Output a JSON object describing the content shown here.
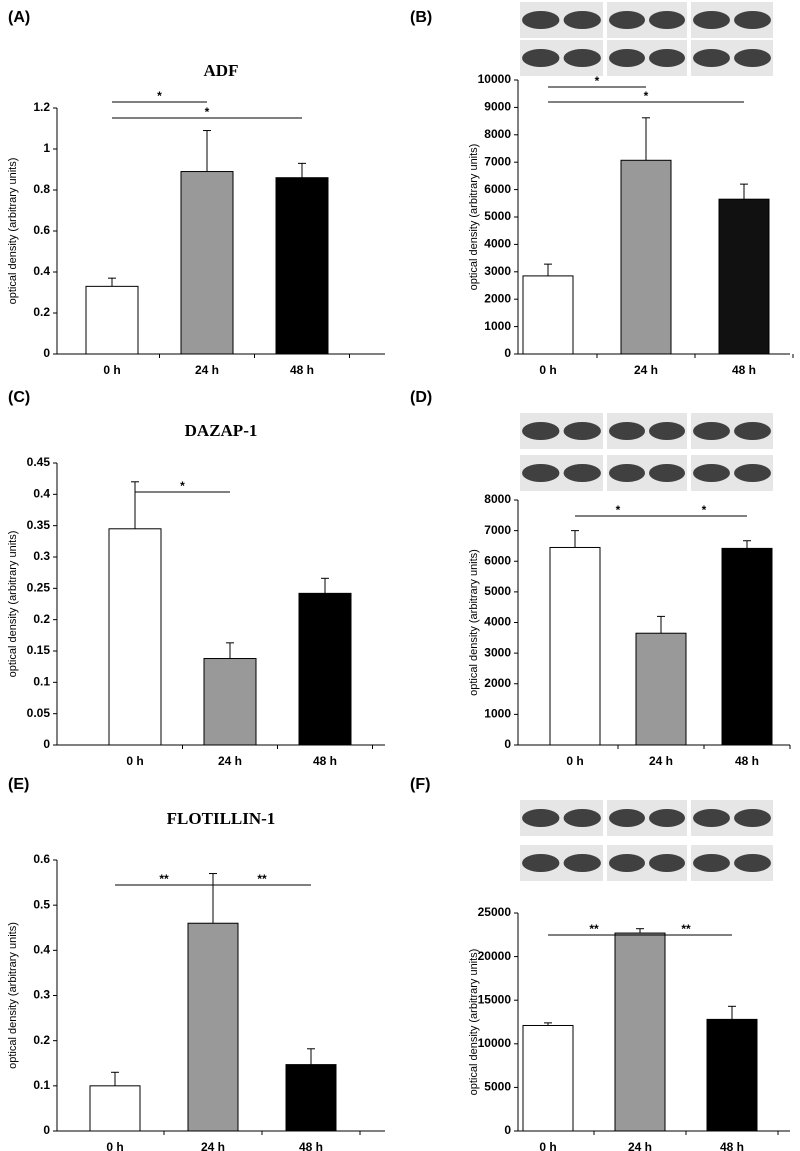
{
  "chart_data": [
    {
      "type": "bar",
      "panel": "(A)",
      "title": "ADF",
      "y_label": "optical density (arbitrary units)",
      "categories": [
        "0 h",
        "24 h",
        "48 h"
      ],
      "values": [
        0.33,
        0.89,
        0.86
      ],
      "errors": [
        0.04,
        0.2,
        0.07
      ],
      "colors": [
        "#ffffff",
        "#999999",
        "#000000"
      ],
      "ylim": [
        0,
        1.2
      ],
      "yticks": [
        0,
        0.2,
        0.4,
        0.6,
        0.8,
        1,
        1.2
      ],
      "annotations": [
        {
          "text": "*",
          "between": [
            0,
            1
          ]
        },
        {
          "text": "*",
          "between": [
            0,
            2
          ]
        }
      ]
    },
    {
      "type": "bar",
      "panel": "(B)",
      "y_label": "optical density (arbitrary units)",
      "categories": [
        "0 h",
        "24 h",
        "48 h"
      ],
      "values": [
        2850,
        7070,
        5650
      ],
      "errors": [
        430,
        1550,
        550
      ],
      "colors": [
        "#ffffff",
        "#999999",
        "#111111"
      ],
      "ylim": [
        0,
        10000
      ],
      "yticks": [
        0,
        1000,
        2000,
        3000,
        4000,
        5000,
        6000,
        7000,
        8000,
        9000,
        10000
      ],
      "annotations": [
        {
          "text": "*",
          "between": [
            0,
            1
          ]
        },
        {
          "text": "*",
          "between": [
            0,
            2
          ]
        }
      ]
    },
    {
      "type": "bar",
      "panel": "(C)",
      "title": "DAZAP-1",
      "y_label": "optical density (arbitrary units)",
      "categories": [
        "0 h",
        "24 h",
        "48 h"
      ],
      "values": [
        0.345,
        0.138,
        0.242
      ],
      "errors": [
        0.075,
        0.025,
        0.024
      ],
      "colors": [
        "#ffffff",
        "#999999",
        "#000000"
      ],
      "ylim": [
        0,
        0.45
      ],
      "yticks": [
        0,
        0.05,
        0.1,
        0.15,
        0.2,
        0.25,
        0.3,
        0.35,
        0.4,
        0.45
      ],
      "annotations": [
        {
          "text": "*",
          "between": [
            0,
            1
          ]
        }
      ]
    },
    {
      "type": "bar",
      "panel": "(D)",
      "y_label": "optical density (arbitrary units)",
      "categories": [
        "0 h",
        "24 h",
        "48 h"
      ],
      "values": [
        6450,
        3650,
        6420
      ],
      "errors": [
        550,
        550,
        250
      ],
      "colors": [
        "#ffffff",
        "#999999",
        "#000000"
      ],
      "ylim": [
        0,
        8000
      ],
      "yticks": [
        0,
        1000,
        2000,
        3000,
        4000,
        5000,
        6000,
        7000,
        8000
      ],
      "annotations": [
        {
          "text": "*",
          "between": [
            0,
            1
          ]
        },
        {
          "text": "*",
          "between": [
            1,
            2
          ]
        }
      ]
    },
    {
      "type": "bar",
      "panel": "(E)",
      "title": "FLOTILLIN-1",
      "y_label": "optical density (arbitrary units)",
      "categories": [
        "0 h",
        "24 h",
        "48 h"
      ],
      "values": [
        0.1,
        0.46,
        0.147
      ],
      "errors": [
        0.03,
        0.11,
        0.035
      ],
      "colors": [
        "#ffffff",
        "#999999",
        "#000000"
      ],
      "ylim": [
        0,
        0.6
      ],
      "yticks": [
        0,
        0.1,
        0.2,
        0.3,
        0.4,
        0.5,
        0.6
      ],
      "annotations": [
        {
          "text": "**",
          "between": [
            0,
            1
          ]
        },
        {
          "text": "**",
          "between": [
            1,
            2
          ]
        }
      ]
    },
    {
      "type": "bar",
      "panel": "(F)",
      "y_label": "optical density (arbitrary units)",
      "categories": [
        "0 h",
        "24 h",
        "48 h"
      ],
      "values": [
        12100,
        22700,
        12800
      ],
      "errors": [
        300,
        500,
        1500
      ],
      "colors": [
        "#ffffff",
        "#999999",
        "#000000"
      ],
      "ylim": [
        0,
        25000
      ],
      "yticks": [
        0,
        5000,
        10000,
        15000,
        20000,
        25000
      ],
      "annotations": [
        {
          "text": "**",
          "between": [
            0,
            1
          ]
        },
        {
          "text": "**",
          "between": [
            1,
            2
          ]
        }
      ]
    }
  ]
}
